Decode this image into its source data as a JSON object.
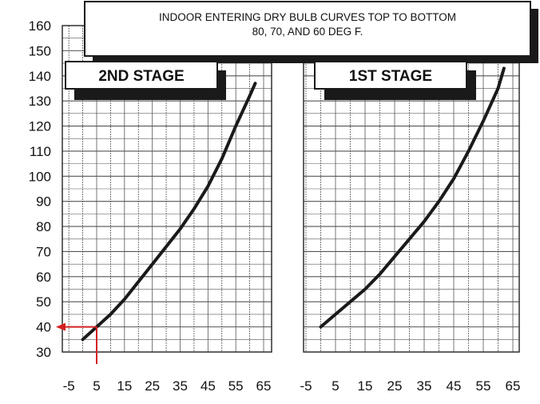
{
  "title_lines": [
    "INDOOR ENTERING DRY BULB CURVES TOP TO BOTTOM",
    "80, 70, AND 60 DEG F."
  ],
  "y_ticks": [
    "160",
    "150",
    "140",
    "130",
    "120",
    "110",
    "100",
    "90",
    "80",
    "70",
    "60",
    "50",
    "40",
    "30"
  ],
  "x_ticks_left": [
    "-5",
    "5",
    "15",
    "25",
    "35",
    "45",
    "55",
    "65"
  ],
  "x_ticks_right": [
    "-5",
    "5",
    "15",
    "25",
    "35",
    "45",
    "55",
    "65"
  ],
  "colors": {
    "curve": "#1a1a1a",
    "grid": "#555555",
    "annotation": "#d42020"
  },
  "chart_data": [
    {
      "type": "line",
      "title": "2ND STAGE",
      "xlim": [
        -5,
        65
      ],
      "ylim": [
        30,
        160
      ],
      "grid": true,
      "annotation": {
        "x": 5,
        "y": 40,
        "color": "#d42020"
      },
      "series": [
        {
          "x": [
            0,
            5,
            10,
            15,
            20,
            25,
            30,
            35,
            40,
            45,
            50,
            55,
            60,
            62
          ],
          "y": [
            35,
            40,
            45,
            51,
            58,
            65,
            72,
            79,
            87,
            96,
            107,
            120,
            132,
            137
          ]
        }
      ]
    },
    {
      "type": "line",
      "title": "1ST STAGE",
      "xlim": [
        -5,
        65
      ],
      "ylim": [
        30,
        160
      ],
      "grid": true,
      "series": [
        {
          "x": [
            0,
            5,
            10,
            15,
            20,
            25,
            30,
            35,
            40,
            45,
            50,
            55,
            60,
            62
          ],
          "y": [
            40,
            45,
            50,
            55,
            61,
            68,
            75,
            82,
            90,
            99,
            110,
            122,
            135,
            143
          ]
        }
      ]
    }
  ]
}
